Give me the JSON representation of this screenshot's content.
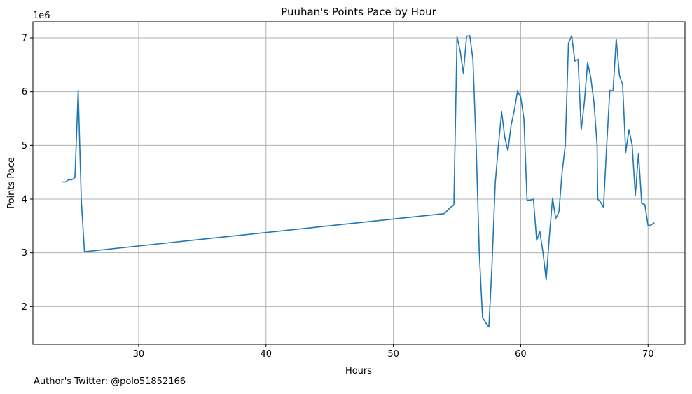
{
  "chart_data": {
    "type": "line",
    "title": "Puuhan's Points Pace by Hour",
    "xlabel": "Hours",
    "ylabel": "Points Pace",
    "y_offset_label": "1e6",
    "xlim": [
      21.7,
      72.9
    ],
    "ylim": [
      1300000,
      7300000
    ],
    "xticks": [
      30,
      40,
      50,
      60,
      70
    ],
    "yticks": [
      2000000,
      3000000,
      4000000,
      5000000,
      6000000,
      7000000
    ],
    "ytick_labels": [
      "2",
      "3",
      "4",
      "5",
      "6",
      "7"
    ],
    "grid": true,
    "line_color": "#1f77b4",
    "series": [
      {
        "x": [
          24.0,
          24.25,
          24.5,
          24.75,
          25.0,
          25.25,
          25.5,
          25.75,
          54.0,
          54.5,
          54.75,
          54.9,
          55.0,
          55.25,
          55.5,
          55.75,
          56.0,
          56.25,
          56.5,
          56.75,
          57.0,
          57.25,
          57.5,
          57.75,
          58.0,
          58.25,
          58.5,
          58.75,
          59.0,
          59.25,
          59.5,
          59.75,
          60.0,
          60.25,
          60.5,
          60.75,
          61.0,
          61.25,
          61.5,
          61.75,
          62.0,
          62.25,
          62.5,
          62.75,
          63.0,
          63.25,
          63.5,
          63.75,
          64.0,
          64.25,
          64.5,
          64.75,
          65.0,
          65.25,
          65.5,
          65.75,
          66.0,
          66.05,
          66.25,
          66.5,
          66.75,
          67.0,
          67.25,
          67.5,
          67.75,
          68.0,
          68.25,
          68.5,
          68.75,
          69.0,
          69.25,
          69.5,
          69.75,
          70.0,
          70.25,
          70.5
        ],
        "y": [
          4320000,
          4320000,
          4360000,
          4360000,
          4400000,
          6020000,
          3970000,
          3020000,
          3730000,
          3850000,
          3890000,
          5750000,
          7020000,
          6750000,
          6340000,
          7030000,
          7040000,
          6600000,
          5000000,
          3000000,
          1800000,
          1700000,
          1620000,
          2800000,
          4300000,
          5000000,
          5620000,
          5150000,
          4900000,
          5380000,
          5650000,
          6010000,
          5900000,
          5500000,
          3980000,
          3980000,
          4000000,
          3230000,
          3400000,
          3000000,
          2490000,
          3300000,
          4020000,
          3640000,
          3760000,
          4500000,
          5000000,
          6900000,
          7040000,
          6570000,
          6600000,
          5290000,
          5800000,
          6540000,
          6270000,
          5800000,
          5000000,
          4000000,
          3950000,
          3850000,
          5000000,
          6030000,
          6020000,
          6980000,
          6300000,
          6130000,
          4870000,
          5290000,
          5010000,
          4070000,
          4850000,
          3920000,
          3900000,
          3500000,
          3520000,
          3560000
        ]
      }
    ]
  },
  "footer": {
    "text": "Author's Twitter: @polo51852166"
  }
}
